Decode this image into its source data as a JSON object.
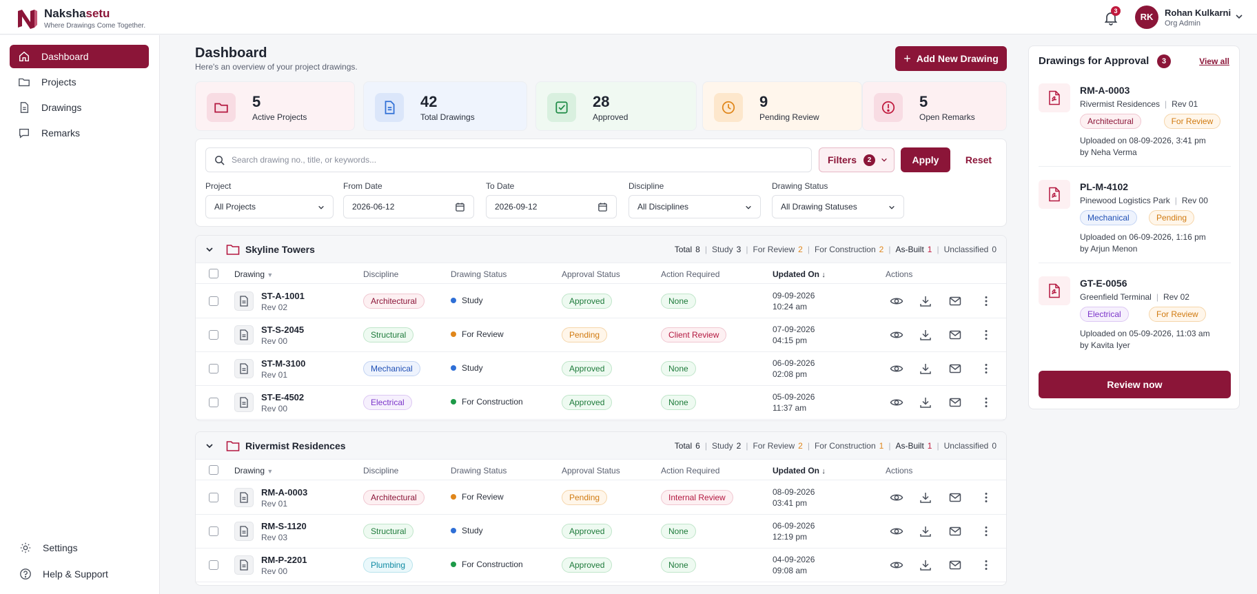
{
  "brand": {
    "name_a": "Naksha",
    "name_b": "setu",
    "tagline": "Where Drawings Come Together."
  },
  "header": {
    "notifications": "3",
    "user_initials": "RK",
    "user_name": "Rohan Kulkarni",
    "user_role": "Org Admin"
  },
  "sidebar": {
    "items": [
      {
        "label": "Dashboard",
        "icon": "home-icon",
        "active": true
      },
      {
        "label": "Projects",
        "icon": "folder-icon"
      },
      {
        "label": "Drawings",
        "icon": "document-icon"
      },
      {
        "label": "Remarks",
        "icon": "chat-icon"
      }
    ],
    "bottom": [
      {
        "label": "Settings",
        "icon": "gear-icon"
      },
      {
        "label": "Help & Support",
        "icon": "help-icon"
      }
    ]
  },
  "page": {
    "title": "Dashboard",
    "subtitle": "Here's an overview of your project drawings.",
    "add_label": "Add New Drawing"
  },
  "stats": [
    {
      "value": "5",
      "label": "Active Projects",
      "icon": "folder-icon",
      "color": "#b3173f"
    },
    {
      "value": "42",
      "label": "Total Drawings",
      "icon": "document-icon",
      "color": "#2f6fd6"
    },
    {
      "value": "28",
      "label": "Approved",
      "icon": "check-icon",
      "color": "#1d8a45"
    },
    {
      "value": "9",
      "label": "Pending Review",
      "icon": "clock-icon",
      "color": "#e0861a"
    },
    {
      "value": "5",
      "label": "Open Remarks",
      "icon": "alert-icon",
      "color": "#c0193d"
    }
  ],
  "filters": {
    "search_placeholder": "Search drawing no., title, or keywords...",
    "filters_label": "Filters",
    "filters_count": "2",
    "apply_label": "Apply",
    "reset_label": "Reset",
    "project_label": "Project",
    "project_value": "All Projects",
    "from_label": "From Date",
    "from_value": "2026-06-12",
    "to_label": "To Date",
    "to_value": "2026-09-12",
    "discipline_label": "Discipline",
    "discipline_value": "All Disciplines",
    "status_label": "Drawing Status",
    "status_value": "All Drawing Statuses"
  },
  "columns": {
    "drawing": "Drawing",
    "discipline": "Discipline",
    "status": "Drawing Status",
    "approval": "Approval Status",
    "action": "Action Required",
    "updated": "Updated On",
    "actions": "Actions"
  },
  "summary_labels": {
    "total": "Total",
    "study": "Study",
    "review": "For Review",
    "construction": "For Construction",
    "asbuilt": "As-Built",
    "unclassified": "Unclassified"
  },
  "groups": [
    {
      "name": "Skyline Towers",
      "summary": {
        "total": "8",
        "study": "3",
        "review": "2",
        "construction": "2",
        "asbuilt": "1",
        "unclassified": "0"
      },
      "rows": [
        {
          "no": "ST-A-1001",
          "rev": "Rev 02",
          "discipline": "Architectural",
          "status": "Study",
          "approval": "Approved",
          "action": "None",
          "date": "09-09-2026",
          "time": "10:24 am"
        },
        {
          "no": "ST-S-2045",
          "rev": "Rev 00",
          "discipline": "Structural",
          "status": "For Review",
          "approval": "Pending",
          "action": "Client Review",
          "date": "07-09-2026",
          "time": "04:15 pm"
        },
        {
          "no": "ST-M-3100",
          "rev": "Rev 01",
          "discipline": "Mechanical",
          "status": "Study",
          "approval": "Approved",
          "action": "None",
          "date": "06-09-2026",
          "time": "02:08 pm"
        },
        {
          "no": "ST-E-4502",
          "rev": "Rev 00",
          "discipline": "Electrical",
          "status": "For Construction",
          "approval": "Approved",
          "action": "None",
          "date": "05-09-2026",
          "time": "11:37 am"
        }
      ]
    },
    {
      "name": "Rivermist Residences",
      "summary": {
        "total": "6",
        "study": "2",
        "review": "2",
        "construction": "1",
        "asbuilt": "1",
        "unclassified": "0"
      },
      "rows": [
        {
          "no": "RM-A-0003",
          "rev": "Rev 01",
          "discipline": "Architectural",
          "status": "For Review",
          "approval": "Pending",
          "action": "Internal Review",
          "date": "08-09-2026",
          "time": "03:41 pm"
        },
        {
          "no": "RM-S-1120",
          "rev": "Rev 03",
          "discipline": "Structural",
          "status": "Study",
          "approval": "Approved",
          "action": "None",
          "date": "06-09-2026",
          "time": "12:19 pm"
        },
        {
          "no": "RM-P-2201",
          "rev": "Rev 00",
          "discipline": "Plumbing",
          "status": "For Construction",
          "approval": "Approved",
          "action": "None",
          "date": "04-09-2026",
          "time": "09:08 am"
        }
      ]
    }
  ],
  "approvals": {
    "title": "Drawings for Approval",
    "count": "3",
    "view_all": "View all",
    "review_label": "Review now",
    "items": [
      {
        "no": "RM-A-0003",
        "project": "Rivermist Residences",
        "rev": "Rev 01",
        "discipline": "Architectural",
        "status": "For Review",
        "uploaded": "Uploaded on 08-09-2026, 3:41 pm",
        "by": "by Neha Verma"
      },
      {
        "no": "PL-M-4102",
        "project": "Pinewood Logistics Park",
        "rev": "Rev 00",
        "discipline": "Mechanical",
        "status": "Pending",
        "uploaded": "Uploaded on 06-09-2026, 1:16 pm",
        "by": "by Arjun Menon"
      },
      {
        "no": "GT-E-0056",
        "project": "Greenfield Terminal",
        "rev": "Rev 02",
        "discipline": "Electrical",
        "status": "For Review",
        "uploaded": "Uploaded on 05-09-2026, 11:03 am",
        "by": "by Kavita Iyer"
      }
    ]
  },
  "colors": {
    "accent": "#8b1538",
    "study": "#2f6fd6",
    "review": "#e0861a",
    "construction": "#1d9a48"
  }
}
